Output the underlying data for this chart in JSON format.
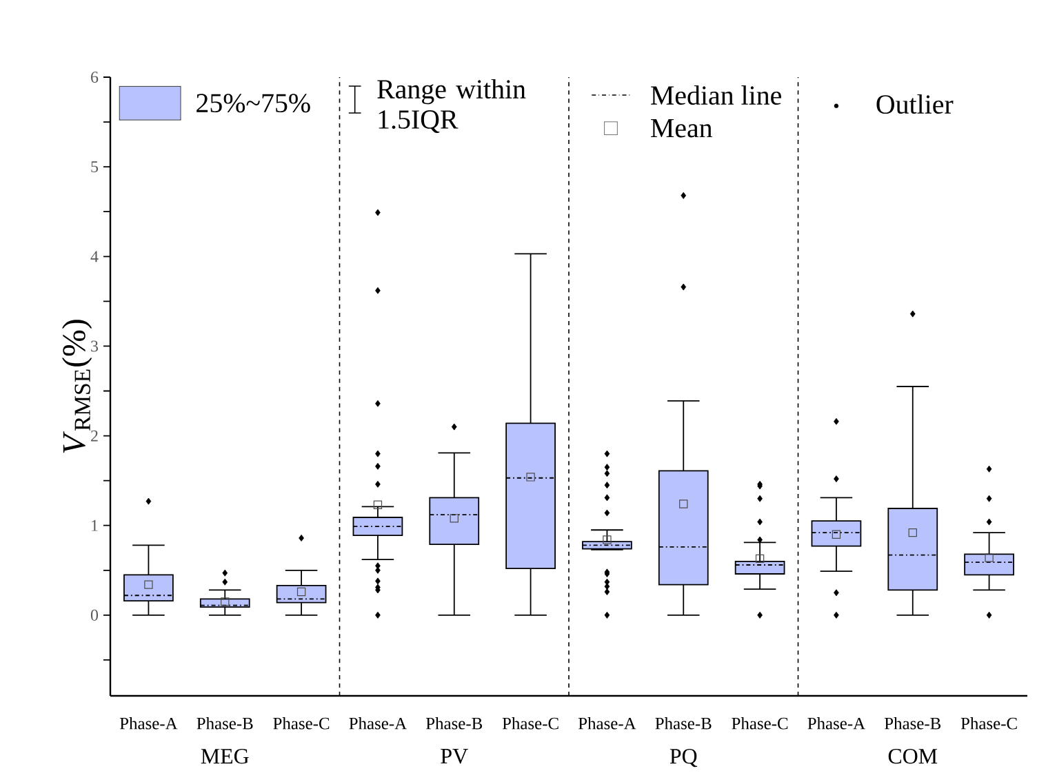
{
  "chart_data": {
    "type": "box",
    "categories": [
      "Phase-A",
      "Phase-B",
      "Phase-C",
      "Phase-A",
      "Phase-B",
      "Phase-C",
      "Phase-A",
      "Phase-B",
      "Phase-C",
      "Phase-A",
      "Phase-B",
      "Phase-C"
    ],
    "ylabel": "*V*$_{RMSE}$(%)",
    "color": "#b8c2fc",
    "boxes": [
      {
        "low": 0,
        "q1": 0.16,
        "median": 0.22,
        "q3": 0.45,
        "high": 0.78,
        "mean": 0.34,
        "outliers": [
          1.27
        ]
      },
      {
        "low": 0,
        "q1": 0.09,
        "median": 0.11,
        "q3": 0.18,
        "high": 0.28,
        "mean": 0.15,
        "outliers": [
          0.47,
          0.37
        ]
      },
      {
        "low": 0,
        "q1": 0.14,
        "median": 0.18,
        "q3": 0.33,
        "high": 0.5,
        "mean": 0.26,
        "outliers": [
          0.86
        ]
      },
      {
        "low": 0.62,
        "q1": 0.89,
        "median": 0.99,
        "q3": 1.09,
        "high": 1.21,
        "mean": 1.23,
        "outliers": [
          4.49,
          3.62,
          2.36,
          1.8,
          1.66,
          1.46,
          0.55,
          0.5,
          0.38,
          0.31,
          0.28,
          0
        ]
      },
      {
        "low": 0,
        "q1": 0.79,
        "median": 1.12,
        "q3": 1.31,
        "high": 1.81,
        "mean": 1.08,
        "outliers": [
          2.1
        ]
      },
      {
        "low": 0,
        "q1": 0.52,
        "median": 1.53,
        "q3": 2.14,
        "high": 4.03,
        "mean": 1.54
      },
      {
        "low": 0.73,
        "q1": 0.74,
        "median": 0.78,
        "q3": 0.82,
        "high": 0.95,
        "mean": 0.84,
        "outliers": [
          1.8,
          1.65,
          1.58,
          1.45,
          1.31,
          1.14,
          0.48,
          0.46,
          0.37,
          0.32,
          0.26,
          0
        ]
      },
      {
        "low": 0,
        "q1": 0.34,
        "median": 0.76,
        "q3": 1.61,
        "high": 2.39,
        "mean": 1.24,
        "outliers": [
          4.68,
          3.66
        ]
      },
      {
        "low": 0.29,
        "q1": 0.46,
        "median": 0.56,
        "q3": 0.6,
        "high": 0.81,
        "mean": 0.63,
        "outliers": [
          1.46,
          1.44,
          1.3,
          1.04,
          0.84,
          0
        ]
      },
      {
        "low": 0.49,
        "q1": 0.77,
        "median": 0.92,
        "q3": 1.05,
        "high": 1.31,
        "mean": 0.9,
        "outliers": [
          2.16,
          1.52,
          0.25,
          0
        ]
      },
      {
        "low": 0,
        "q1": 0.28,
        "median": 0.67,
        "q3": 1.19,
        "high": 2.55,
        "mean": 0.92,
        "outliers": [
          3.36
        ]
      },
      {
        "low": 0.28,
        "q1": 0.45,
        "median": 0.59,
        "q3": 0.68,
        "high": 0.92,
        "mean": 0.64,
        "outliers": [
          1.63,
          1.3,
          1.04,
          0
        ]
      }
    ],
    "ylim": [
      -0.9,
      6
    ],
    "yticks": [
      {
        "value": -0.5,
        "label": null
      },
      0,
      {
        "value": 0.5,
        "label": null
      },
      1,
      {
        "value": 1.5,
        "label": null
      },
      2,
      {
        "value": 2.5,
        "label": null
      },
      3,
      {
        "value": 3.5,
        "label": null
      },
      4,
      {
        "value": 4.5,
        "label": null
      },
      5,
      {
        "value": 5.5,
        "label": null
      },
      6
    ],
    "annotations": [
      "MEG",
      "PV",
      "PQ",
      "COM",
      "25%~75%",
      "Range within 1.5IQR",
      "Median line",
      "Mean",
      "Outlier"
    ],
    "marker": "diamond"
  }
}
